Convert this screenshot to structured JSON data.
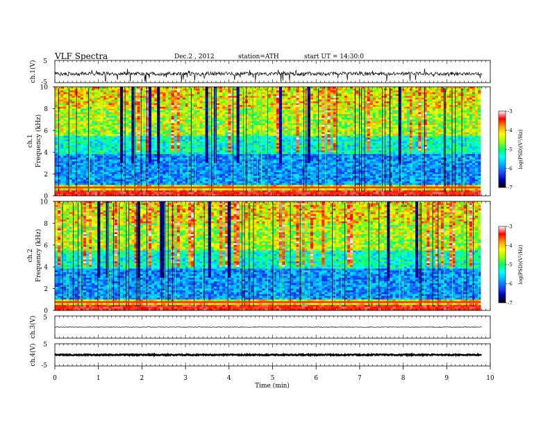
{
  "header": {
    "title": "VLF Spectra",
    "date": "Dec.2 , 2012",
    "station": "station=ATH",
    "start": "start UT = 14:30:0"
  },
  "colors": {
    "spectrum_stops": [
      "#000000",
      "#0000b0",
      "#1c4cff",
      "#00b0ff",
      "#00ffff",
      "#00ff66",
      "#a0ff00",
      "#ffff00",
      "#ff9900",
      "#ff0000",
      "#ffffff"
    ],
    "trace": "#000000"
  },
  "chart_data": [
    {
      "type": "line",
      "ylabel": "ch.1(V)",
      "ylim": [
        -5,
        5
      ],
      "yticks": [
        "5",
        "-5"
      ],
      "xlim": [
        0,
        10
      ],
      "description_level": "noisy signal around -1 V with spikes to about -5 V"
    },
    {
      "type": "heatmap",
      "ylabel_lines": [
        "ch.1",
        "Frequency (kHz)"
      ],
      "ylim": [
        0,
        10
      ],
      "yticks": [
        "0",
        "2",
        "4",
        "6",
        "8",
        "10"
      ],
      "xlim": [
        0,
        10
      ],
      "colorbar": {
        "label": "log(PSD)(V²/Hz)",
        "range": [
          -7,
          -3
        ],
        "ticks": [
          "-3",
          "-4",
          "-5",
          "-6",
          "-7"
        ]
      }
    },
    {
      "type": "heatmap",
      "ylabel_lines": [
        "ch.2",
        "Frequency (kHz)"
      ],
      "ylim": [
        0,
        10
      ],
      "yticks": [
        "0",
        "2",
        "4",
        "6",
        "8",
        "10"
      ],
      "xlim": [
        0,
        10
      ],
      "colorbar": {
        "label": "log(PSD)(V²/Hz)",
        "range": [
          -7,
          -3
        ],
        "ticks": [
          "-3",
          "-4",
          "-5",
          "-6",
          "-7"
        ]
      }
    },
    {
      "type": "line",
      "ylabel": "ch.3(V)",
      "ylim": [
        -5,
        5
      ],
      "yticks": [
        "5"
      ],
      "xlim": [
        0,
        10
      ],
      "level": 0
    },
    {
      "type": "line",
      "ylabel": "ch.4(V)",
      "ylim": [
        -5,
        5
      ],
      "yticks": [
        "5",
        "-5"
      ],
      "xlim": [
        0,
        10
      ],
      "level": 0
    }
  ],
  "xaxis": {
    "label": "Time (min)",
    "ticks": [
      "0",
      "1",
      "2",
      "3",
      "4",
      "5",
      "6",
      "7",
      "8",
      "9",
      "10"
    ]
  }
}
